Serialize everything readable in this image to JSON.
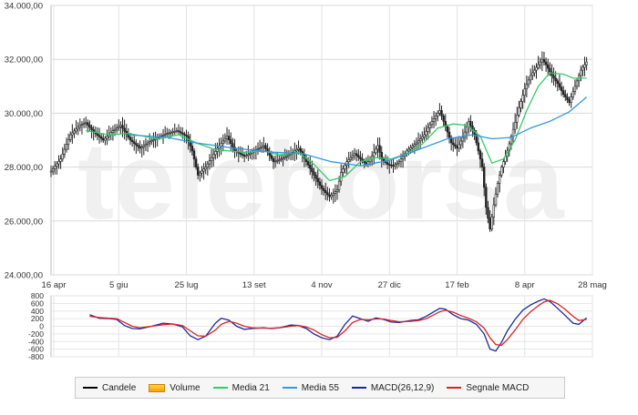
{
  "chart_data": {
    "type": "line",
    "watermark": "teleborsa",
    "x_ticks": [
      "16 apr",
      "5 giu",
      "25 lug",
      "13 set",
      "4 nov",
      "27 dic",
      "17 feb",
      "8 apr",
      "28 mag"
    ],
    "price_axis": {
      "ticks": [
        "24.000,00",
        "26.000,00",
        "28.000,00",
        "30.000,00",
        "32.000,00",
        "34.000,00"
      ],
      "ylim": [
        24000,
        34000
      ]
    },
    "macd_axis": {
      "ticks": [
        "-800",
        "-600",
        "-400",
        "-200",
        "0",
        "200",
        "400",
        "600",
        "800"
      ],
      "ylim": [
        -800,
        800
      ]
    },
    "price_path": [
      [
        0,
        27850
      ],
      [
        5,
        28300
      ],
      [
        10,
        29200
      ],
      [
        15,
        29550
      ],
      [
        18,
        29650
      ],
      [
        22,
        29300
      ],
      [
        27,
        29000
      ],
      [
        32,
        29350
      ],
      [
        36,
        29550
      ],
      [
        41,
        29000
      ],
      [
        46,
        28700
      ],
      [
        50,
        28900
      ],
      [
        55,
        29100
      ],
      [
        60,
        29250
      ],
      [
        65,
        29350
      ],
      [
        70,
        29150
      ],
      [
        73,
        28600
      ],
      [
        76,
        27700
      ],
      [
        80,
        28000
      ],
      [
        86,
        28700
      ],
      [
        91,
        29150
      ],
      [
        95,
        28600
      ],
      [
        100,
        28400
      ],
      [
        105,
        28600
      ],
      [
        110,
        28800
      ],
      [
        115,
        28200
      ],
      [
        119,
        28300
      ],
      [
        124,
        28500
      ],
      [
        128,
        28700
      ],
      [
        132,
        28200
      ],
      [
        136,
        27700
      ],
      [
        140,
        27200
      ],
      [
        144,
        26900
      ],
      [
        148,
        27150
      ],
      [
        150,
        27800
      ],
      [
        153,
        28200
      ],
      [
        157,
        28500
      ],
      [
        160,
        28300
      ],
      [
        163,
        28100
      ],
      [
        166,
        28400
      ],
      [
        169,
        28800
      ],
      [
        171,
        28300
      ],
      [
        174,
        28100
      ],
      [
        177,
        28050
      ],
      [
        180,
        28200
      ],
      [
        184,
        28600
      ],
      [
        189,
        28900
      ],
      [
        193,
        29200
      ],
      [
        197,
        29700
      ],
      [
        201,
        30100
      ],
      [
        204,
        29500
      ],
      [
        207,
        28900
      ],
      [
        210,
        28700
      ],
      [
        213,
        29100
      ],
      [
        216,
        29700
      ],
      [
        219,
        29200
      ],
      [
        221,
        28600
      ],
      [
        223,
        28000
      ],
      [
        225,
        26500
      ],
      [
        227,
        25700
      ],
      [
        229,
        26600
      ],
      [
        231,
        27400
      ],
      [
        233,
        28000
      ],
      [
        236,
        28600
      ],
      [
        239,
        29400
      ],
      [
        242,
        30200
      ],
      [
        245,
        30900
      ],
      [
        248,
        31400
      ],
      [
        251,
        31700
      ],
      [
        254,
        32000
      ],
      [
        256,
        31800
      ],
      [
        259,
        31400
      ],
      [
        262,
        31100
      ],
      [
        265,
        30700
      ],
      [
        268,
        30400
      ],
      [
        271,
        31000
      ],
      [
        274,
        31600
      ],
      [
        277,
        31900
      ]
    ],
    "series": [
      {
        "name": "Media 21",
        "color": "#33cc66",
        "points": [
          [
            18,
            29350
          ],
          [
            30,
            29200
          ],
          [
            40,
            29250
          ],
          [
            55,
            29050
          ],
          [
            66,
            29200
          ],
          [
            75,
            28900
          ],
          [
            85,
            28650
          ],
          [
            100,
            28550
          ],
          [
            110,
            28600
          ],
          [
            118,
            28450
          ],
          [
            128,
            28550
          ],
          [
            136,
            28100
          ],
          [
            144,
            27500
          ],
          [
            152,
            27650
          ],
          [
            160,
            28200
          ],
          [
            168,
            28350
          ],
          [
            176,
            28300
          ],
          [
            184,
            28500
          ],
          [
            192,
            28850
          ],
          [
            200,
            29450
          ],
          [
            208,
            29600
          ],
          [
            215,
            29550
          ],
          [
            222,
            29150
          ],
          [
            228,
            28150
          ],
          [
            234,
            28300
          ],
          [
            240,
            29000
          ],
          [
            246,
            30100
          ],
          [
            252,
            31000
          ],
          [
            258,
            31500
          ],
          [
            265,
            31450
          ],
          [
            270,
            31300
          ],
          [
            277,
            31300
          ]
        ]
      },
      {
        "name": "Media 55",
        "color": "#3399dd",
        "points": [
          [
            40,
            29200
          ],
          [
            60,
            29100
          ],
          [
            75,
            28900
          ],
          [
            95,
            28700
          ],
          [
            115,
            28550
          ],
          [
            130,
            28500
          ],
          [
            145,
            28200
          ],
          [
            160,
            28050
          ],
          [
            175,
            28250
          ],
          [
            190,
            28650
          ],
          [
            205,
            29050
          ],
          [
            218,
            29200
          ],
          [
            228,
            29050
          ],
          [
            238,
            29100
          ],
          [
            248,
            29450
          ],
          [
            258,
            29700
          ],
          [
            268,
            30050
          ],
          [
            277,
            30600
          ]
        ]
      }
    ],
    "macd_series": [
      {
        "name": "MACD(26,12,9)",
        "color": "#1a2a9a",
        "points": [
          [
            20,
            300
          ],
          [
            25,
            210
          ],
          [
            30,
            200
          ],
          [
            34,
            180
          ],
          [
            38,
            20
          ],
          [
            42,
            -60
          ],
          [
            46,
            -70
          ],
          [
            52,
            0
          ],
          [
            58,
            80
          ],
          [
            63,
            60
          ],
          [
            68,
            -20
          ],
          [
            72,
            -250
          ],
          [
            76,
            -350
          ],
          [
            80,
            -260
          ],
          [
            85,
            80
          ],
          [
            88,
            210
          ],
          [
            92,
            160
          ],
          [
            96,
            0
          ],
          [
            100,
            -80
          ],
          [
            104,
            -60
          ],
          [
            110,
            -40
          ],
          [
            114,
            -60
          ],
          [
            118,
            -40
          ],
          [
            124,
            30
          ],
          [
            128,
            20
          ],
          [
            132,
            -60
          ],
          [
            136,
            -200
          ],
          [
            140,
            -300
          ],
          [
            144,
            -350
          ],
          [
            148,
            -260
          ],
          [
            152,
            50
          ],
          [
            156,
            270
          ],
          [
            160,
            200
          ],
          [
            164,
            130
          ],
          [
            168,
            220
          ],
          [
            172,
            180
          ],
          [
            176,
            110
          ],
          [
            180,
            100
          ],
          [
            186,
            150
          ],
          [
            190,
            170
          ],
          [
            194,
            260
          ],
          [
            198,
            380
          ],
          [
            201,
            470
          ],
          [
            204,
            450
          ],
          [
            208,
            300
          ],
          [
            212,
            200
          ],
          [
            216,
            160
          ],
          [
            220,
            50
          ],
          [
            224,
            -200
          ],
          [
            227,
            -600
          ],
          [
            230,
            -650
          ],
          [
            233,
            -420
          ],
          [
            236,
            -120
          ],
          [
            240,
            180
          ],
          [
            244,
            420
          ],
          [
            248,
            560
          ],
          [
            252,
            660
          ],
          [
            255,
            720
          ],
          [
            258,
            650
          ],
          [
            262,
            470
          ],
          [
            266,
            280
          ],
          [
            270,
            80
          ],
          [
            273,
            50
          ],
          [
            277,
            220
          ]
        ]
      },
      {
        "name": "Segnale MACD",
        "color": "#dd2222",
        "points": [
          [
            20,
            260
          ],
          [
            25,
            230
          ],
          [
            30,
            210
          ],
          [
            34,
            200
          ],
          [
            38,
            100
          ],
          [
            42,
            0
          ],
          [
            46,
            -40
          ],
          [
            52,
            0
          ],
          [
            58,
            40
          ],
          [
            63,
            60
          ],
          [
            68,
            20
          ],
          [
            72,
            -120
          ],
          [
            76,
            -250
          ],
          [
            80,
            -260
          ],
          [
            85,
            -100
          ],
          [
            88,
            50
          ],
          [
            92,
            130
          ],
          [
            96,
            80
          ],
          [
            100,
            0
          ],
          [
            104,
            -40
          ],
          [
            110,
            -50
          ],
          [
            114,
            -50
          ],
          [
            118,
            -40
          ],
          [
            124,
            0
          ],
          [
            128,
            20
          ],
          [
            132,
            -20
          ],
          [
            136,
            -100
          ],
          [
            140,
            -220
          ],
          [
            144,
            -300
          ],
          [
            148,
            -290
          ],
          [
            152,
            -120
          ],
          [
            156,
            100
          ],
          [
            160,
            180
          ],
          [
            164,
            170
          ],
          [
            168,
            190
          ],
          [
            172,
            190
          ],
          [
            176,
            150
          ],
          [
            180,
            120
          ],
          [
            186,
            130
          ],
          [
            190,
            150
          ],
          [
            194,
            200
          ],
          [
            198,
            300
          ],
          [
            201,
            380
          ],
          [
            204,
            420
          ],
          [
            208,
            370
          ],
          [
            212,
            280
          ],
          [
            216,
            210
          ],
          [
            220,
            120
          ],
          [
            224,
            -50
          ],
          [
            227,
            -300
          ],
          [
            230,
            -480
          ],
          [
            233,
            -500
          ],
          [
            236,
            -350
          ],
          [
            240,
            -100
          ],
          [
            244,
            180
          ],
          [
            248,
            380
          ],
          [
            252,
            540
          ],
          [
            255,
            640
          ],
          [
            258,
            680
          ],
          [
            262,
            590
          ],
          [
            266,
            440
          ],
          [
            270,
            260
          ],
          [
            273,
            150
          ],
          [
            277,
            180
          ]
        ]
      }
    ],
    "x_range": [
      0,
      280
    ],
    "legend": [
      {
        "label": "Candele",
        "color": "#000000",
        "kind": "line"
      },
      {
        "label": "Volume",
        "color": "#ffb300",
        "kind": "box"
      },
      {
        "label": "Media 21",
        "color": "#33cc66",
        "kind": "line"
      },
      {
        "label": "Media 55",
        "color": "#3399dd",
        "kind": "line"
      },
      {
        "label": "MACD(26,12,9)",
        "color": "#1a2a9a",
        "kind": "line"
      },
      {
        "label": "Segnale MACD",
        "color": "#dd2222",
        "kind": "line"
      }
    ]
  }
}
